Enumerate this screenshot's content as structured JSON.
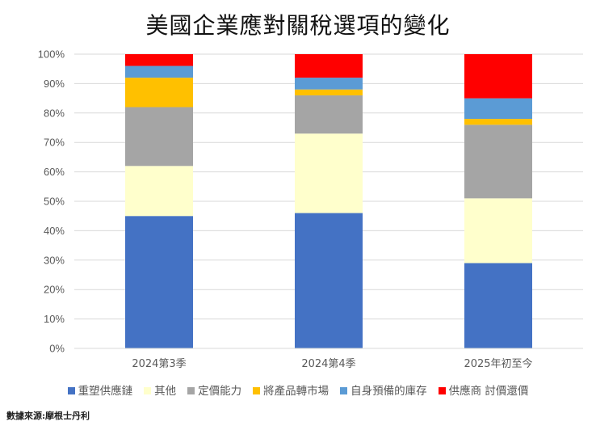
{
  "chart_data": {
    "type": "bar",
    "stacked": true,
    "title": "美國企業應對關稅選項的變化",
    "xlabel": "",
    "ylabel": "",
    "ylim": [
      0,
      100
    ],
    "yticks": [
      "0%",
      "10%",
      "20%",
      "30%",
      "40%",
      "50%",
      "60%",
      "70%",
      "80%",
      "90%",
      "100%"
    ],
    "grid": true,
    "legend_position": "bottom",
    "categories": [
      "2024第3季",
      "2024第4季",
      "2025年初至今"
    ],
    "series": [
      {
        "name": "重塑供應鏈",
        "color": "#4472C4",
        "values": [
          45,
          46,
          29
        ]
      },
      {
        "name": "其他",
        "color": "#FFFFCC",
        "values": [
          17,
          27,
          22
        ]
      },
      {
        "name": "定價能力",
        "color": "#A5A5A5",
        "values": [
          20,
          13,
          25
        ]
      },
      {
        "name": "將產品轉市場",
        "color": "#FFC000",
        "values": [
          10,
          2,
          2
        ]
      },
      {
        "name": "自身預備的庫存",
        "color": "#5B9BD5",
        "values": [
          4,
          4,
          7
        ]
      },
      {
        "name": "供應商 討價還價",
        "color": "#FF0000",
        "values": [
          4,
          8,
          15
        ]
      }
    ]
  },
  "source": "數據來源:摩根士丹利"
}
